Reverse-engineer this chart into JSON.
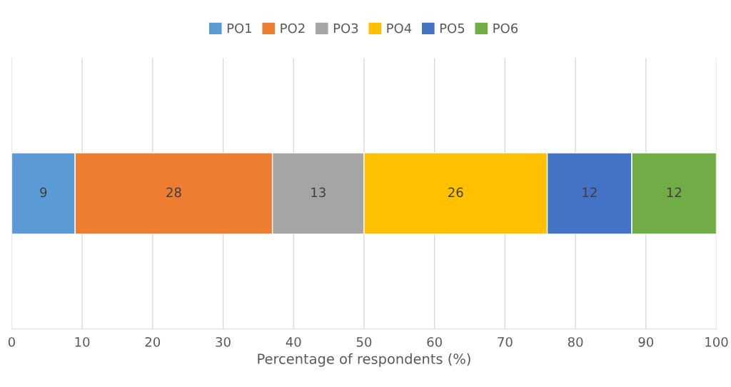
{
  "chart_data": {
    "type": "bar",
    "orientation": "horizontal",
    "stacked": true,
    "categories": [
      null
    ],
    "series": [
      {
        "name": "PO1",
        "color": "#5b9bd5",
        "values": [
          9
        ]
      },
      {
        "name": "PO2",
        "color": "#ed7d31",
        "values": [
          28
        ]
      },
      {
        "name": "PO3",
        "color": "#a5a5a5",
        "values": [
          13
        ]
      },
      {
        "name": "PO4",
        "color": "#ffc000",
        "values": [
          26
        ]
      },
      {
        "name": "PO5",
        "color": "#4472c4",
        "values": [
          12
        ]
      },
      {
        "name": "PO6",
        "color": "#70ad47",
        "values": [
          12
        ]
      }
    ],
    "xlim": [
      0,
      100
    ],
    "xticks": [
      0,
      10,
      20,
      30,
      40,
      50,
      60,
      70,
      80,
      90,
      100
    ],
    "xlabel": "Percentage of respondents (%)",
    "grid": "x",
    "legend": "top",
    "data_labels": true
  }
}
